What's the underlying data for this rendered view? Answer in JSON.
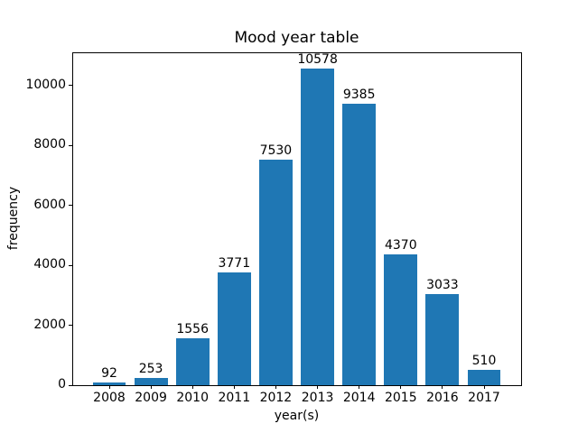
{
  "chart_data": {
    "type": "bar",
    "title": "Mood year table",
    "xlabel": "year(s)",
    "ylabel": "frequency",
    "categories": [
      "2008",
      "2009",
      "2010",
      "2011",
      "2012",
      "2013",
      "2014",
      "2015",
      "2016",
      "2017"
    ],
    "values": [
      92,
      253,
      1556,
      3771,
      7530,
      10578,
      9385,
      4370,
      3033,
      510
    ],
    "bar_value_labels": [
      "92",
      "253",
      "1556",
      "3771",
      "7530",
      "10578",
      "9385",
      "4370",
      "3033",
      "510"
    ],
    "y_ticks": [
      0,
      2000,
      4000,
      6000,
      8000,
      10000
    ],
    "y_tick_labels": [
      "0",
      "2000",
      "4000",
      "6000",
      "8000",
      "10000"
    ],
    "ylim": [
      0,
      11107
    ],
    "bar_color": "#1f77b4",
    "grid": false,
    "legend": null,
    "background_color": "#ffffff",
    "text_color": "#000000"
  }
}
